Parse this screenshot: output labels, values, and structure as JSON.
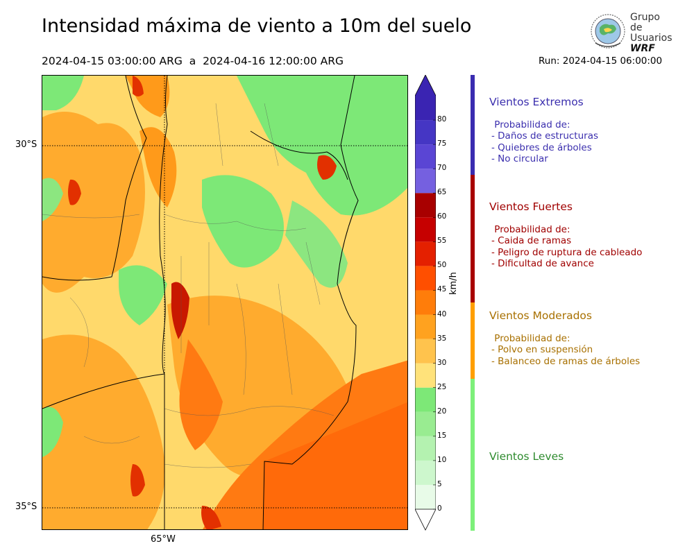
{
  "header": {
    "title": "Intensidad máxima de viento a 10m del suelo",
    "period": "2024-04-15 03:00:00 ARG  a  2024-04-16 12:00:00 ARG",
    "run": "Run: 2024-04-15 06:00:00"
  },
  "logo": {
    "line1": "Grupo de",
    "line2": "Usuarios",
    "line3": "WRF"
  },
  "map": {
    "lat_labels": [
      "30°S",
      "35°S"
    ],
    "lon_labels": [
      "65°W"
    ]
  },
  "colorbar": {
    "unit": "km/h",
    "ticks": [
      "0",
      "5",
      "10",
      "15",
      "20",
      "25",
      "30",
      "35",
      "40",
      "45",
      "50",
      "55",
      "60",
      "65",
      "70",
      "75",
      "80"
    ],
    "colors": [
      "#e8fbe8",
      "#cdf7cd",
      "#b4f2b0",
      "#99ec91",
      "#7de877",
      "#ffe27a",
      "#ffc34d",
      "#ffa21f",
      "#ff7d0a",
      "#ff4f00",
      "#e42000",
      "#c60000",
      "#a80000",
      "#7560e0",
      "#5a45d4",
      "#4536c4",
      "#3a24b2"
    ]
  },
  "categories": [
    {
      "title": "Vientos Extremos",
      "color": "#3a2cb0",
      "text_color": "#3b2fae",
      "lines": " Probabilidad de:\n- Daños de estructuras\n- Quiebres de árboles\n- No circular"
    },
    {
      "title": "Vientos Fuertes",
      "color": "#a80000",
      "text_color": "#a00000",
      "lines": " Probabilidad de:\n- Caida de ramas\n- Peligro de ruptura de cableado\n- Dificultad de avance"
    },
    {
      "title": "Vientos Moderados",
      "color": "#ff9f00",
      "text_color": "#a87000",
      "lines": " Probabilidad de:\n- Polvo en suspensión\n- Balanceo de ramas de árboles"
    },
    {
      "title": "Vientos Leves",
      "color": "#7df07a",
      "text_color": "#2e8b2e",
      "lines": ""
    }
  ]
}
